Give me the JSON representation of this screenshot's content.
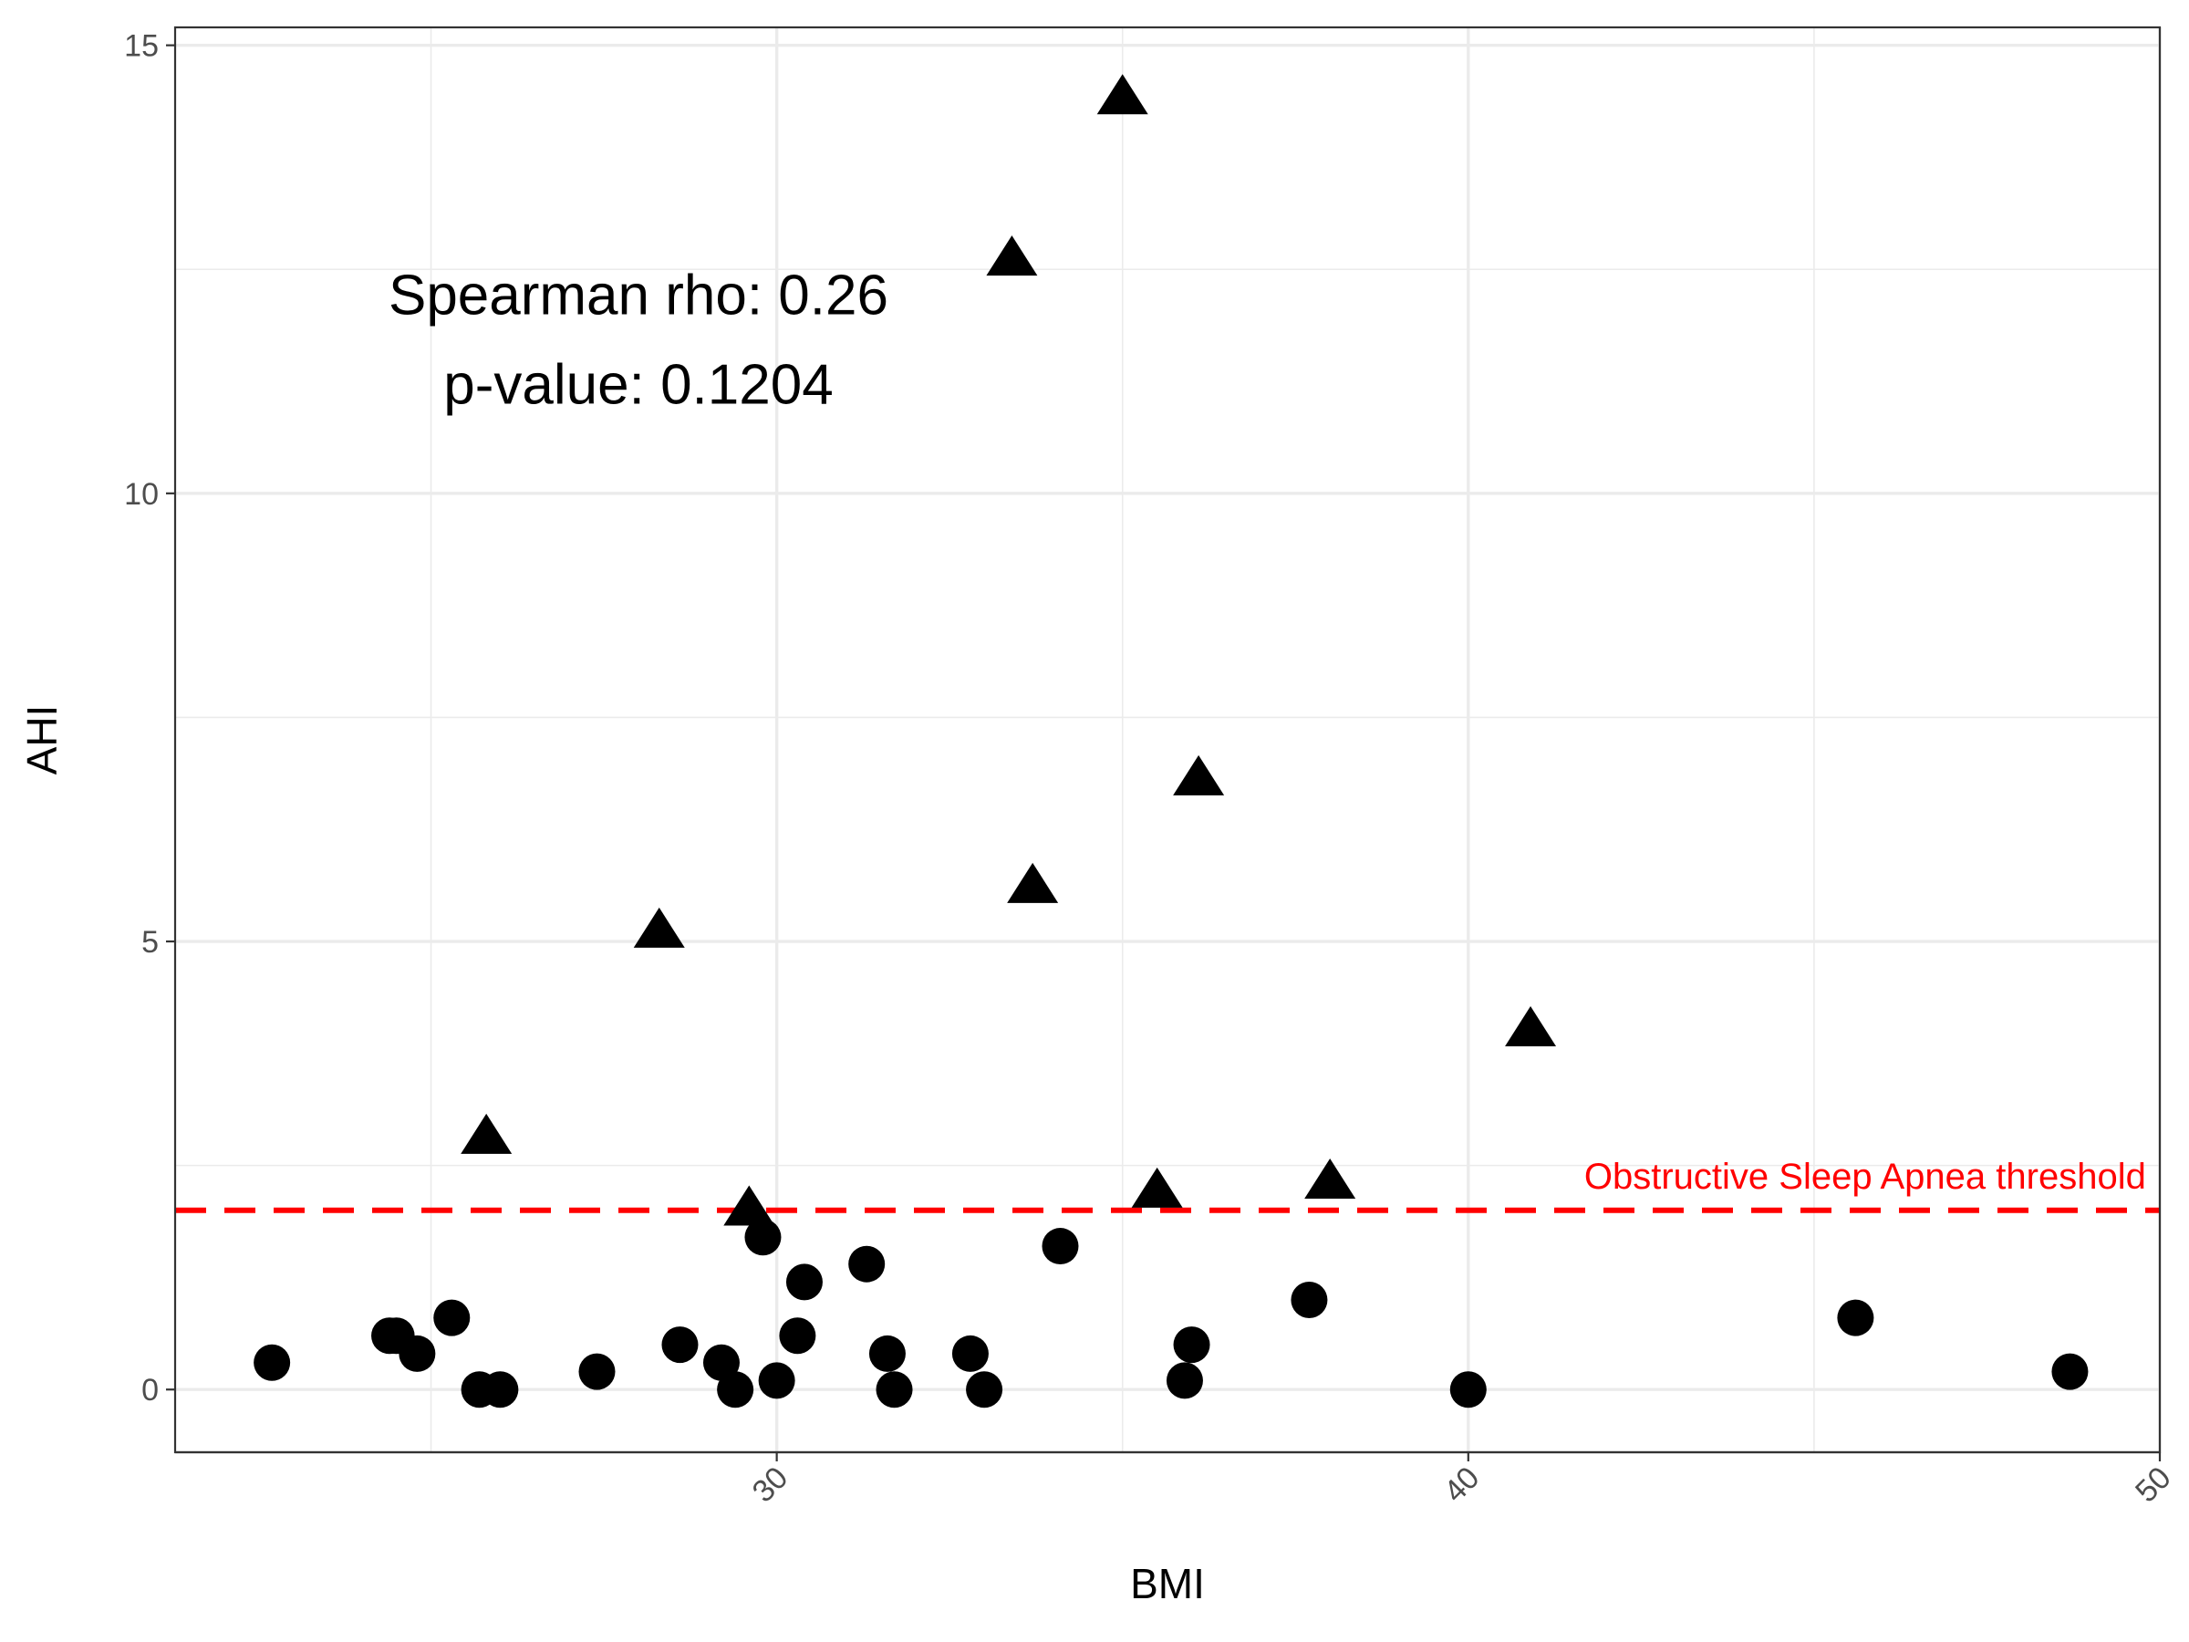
{
  "chart_data": {
    "type": "scatter",
    "xlabel": "BMI",
    "ylabel": "AHI",
    "xlim": [
      21.3,
      50
    ],
    "ylim": [
      -0.7,
      15.2
    ],
    "x_ticks": [
      30,
      40,
      50
    ],
    "y_ticks": [
      0,
      5,
      10,
      15
    ],
    "x_minor": [
      25,
      35,
      45
    ],
    "y_minor": [
      2.5,
      7.5,
      12.5
    ],
    "grid": true,
    "annotations": [
      {
        "text": "Spearman rho: 0.26",
        "x": 28.0,
        "y": 12.0
      },
      {
        "text": "p-value: 0.1204",
        "x": 28.0,
        "y": 11.0
      }
    ],
    "threshold": {
      "value": 2,
      "label": "Obstructive Sleep Apnea threshold",
      "color": "#ff0000",
      "label_x": 49.8
    },
    "series": [
      {
        "marker": "circle",
        "color": "#000000",
        "points": [
          [
            22.7,
            0.3
          ],
          [
            24.4,
            0.6
          ],
          [
            24.5,
            0.6
          ],
          [
            24.8,
            0.4
          ],
          [
            25.3,
            0.8
          ],
          [
            25.7,
            0.0
          ],
          [
            26.0,
            0.0
          ],
          [
            27.4,
            0.2
          ],
          [
            28.6,
            0.5
          ],
          [
            29.2,
            0.3
          ],
          [
            29.4,
            0.0
          ],
          [
            29.8,
            1.7
          ],
          [
            30.0,
            0.1
          ],
          [
            30.3,
            0.6
          ],
          [
            30.4,
            1.2
          ],
          [
            31.3,
            1.4
          ],
          [
            31.6,
            0.4
          ],
          [
            31.7,
            0.0
          ],
          [
            32.8,
            0.4
          ],
          [
            33.0,
            0.0
          ],
          [
            34.1,
            1.6
          ],
          [
            35.9,
            0.1
          ],
          [
            36.0,
            0.5
          ],
          [
            37.7,
            1.0
          ],
          [
            40.0,
            0.0
          ],
          [
            45.6,
            0.8
          ],
          [
            48.7,
            0.2
          ]
        ]
      },
      {
        "marker": "triangle",
        "color": "#000000",
        "points": [
          [
            25.8,
            2.8
          ],
          [
            28.3,
            5.1
          ],
          [
            29.6,
            2.0
          ],
          [
            33.4,
            12.6
          ],
          [
            33.7,
            5.6
          ],
          [
            35.0,
            14.4
          ],
          [
            35.5,
            2.2
          ],
          [
            36.1,
            6.8
          ],
          [
            38.0,
            2.3
          ],
          [
            40.9,
            4.0
          ]
        ]
      }
    ]
  }
}
